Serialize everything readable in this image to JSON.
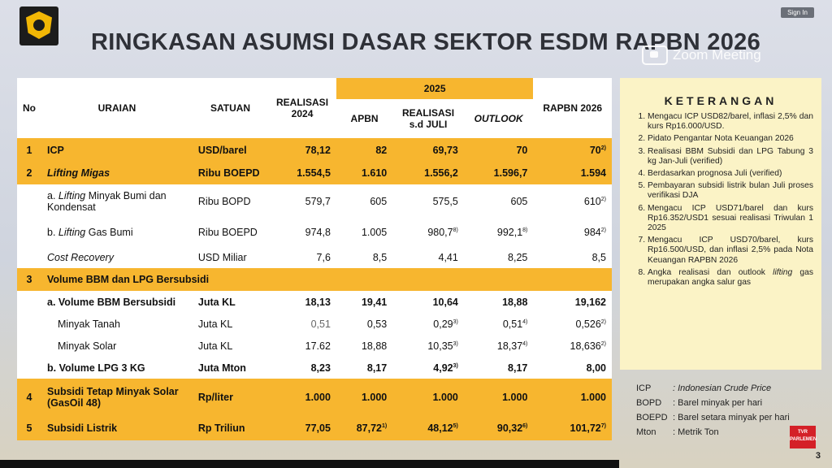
{
  "header": {
    "title": "RINGKASAN ASUMSI DASAR SEKTOR ESDM RAPBN 2026",
    "sign_in": "Sign In",
    "zoom_label": "Zoom Meeting"
  },
  "table": {
    "h_no": "No",
    "h_uraian": "URAIAN",
    "h_satuan": "SATUAN",
    "h_realisasi": "REALISASI 2024",
    "h_2025": "2025",
    "h_apbn": "APBN",
    "h_real_juli": "REALISASI s.d JULI",
    "h_outlook": "OUTLOOK",
    "h_rapbn": "RAPBN 2026",
    "rows": [
      {
        "no": "1",
        "uraian": "ICP",
        "satuan": "USD/barel",
        "r24": "78,12",
        "apbn": "82",
        "real": "69,73",
        "outlook": "70",
        "rapbn": "70",
        "rapbn_sup": "2)"
      },
      {
        "no": "2",
        "uraian": "Lifting Migas",
        "satuan": "Ribu BOEPD",
        "r24": "1.554,5",
        "apbn": "1.610",
        "real": "1.556,2",
        "outlook": "1.596,7",
        "rapbn": "1.594"
      },
      {
        "uraian_pre": "a. ",
        "uraian_it": "Lifting",
        "uraian_post": " Minyak Bumi dan Kondensat",
        "satuan": "Ribu BOPD",
        "r24": "579,7",
        "apbn": "605",
        "real": "575,5",
        "outlook": "605",
        "rapbn": "610",
        "rapbn_sup": "2)"
      },
      {
        "uraian_pre": "b. ",
        "uraian_it": "Lifting",
        "uraian_post": " Gas Bumi",
        "satuan": "Ribu BOEPD",
        "r24": "974,8",
        "apbn": "1.005",
        "real": "980,7",
        "real_sup": "8)",
        "outlook": "992,1",
        "outlook_sup": "8)",
        "rapbn": "984",
        "rapbn_sup": "2)"
      },
      {
        "uraian": "Cost Recovery",
        "satuan": "USD Miliar",
        "r24": "7,6",
        "apbn": "8,5",
        "real": "4,41",
        "outlook": "8,25",
        "rapbn": "8,5"
      },
      {
        "no": "3",
        "uraian": "Volume BBM dan LPG Bersubsidi"
      },
      {
        "uraian": "a. Volume BBM Bersubsidi",
        "satuan": "Juta KL",
        "r24": "18,13",
        "apbn": "19,41",
        "real": "10,64",
        "outlook": "18,88",
        "rapbn": "19,162"
      },
      {
        "uraian": "Minyak Tanah",
        "satuan": "Juta KL",
        "r24": "0,51",
        "apbn": "0,53",
        "real": "0,29",
        "real_sup": "3)",
        "outlook": "0,51",
        "outlook_sup": "4)",
        "rapbn": "0,526",
        "rapbn_sup": "2)"
      },
      {
        "uraian": "Minyak Solar",
        "satuan": "Juta KL",
        "r24": "17.62",
        "apbn": "18,88",
        "real": "10,35",
        "real_sup": "3)",
        "outlook": "18,37",
        "outlook_sup": "4)",
        "rapbn": "18,636",
        "rapbn_sup": "2)"
      },
      {
        "uraian": "b. Volume LPG 3 KG",
        "satuan": "Juta Mton",
        "r24": "8,23",
        "apbn": "8,17",
        "real": "4,92",
        "real_sup": "3)",
        "outlook": "8,17",
        "rapbn": "8,00"
      },
      {
        "no": "4",
        "uraian": "Subsidi Tetap Minyak Solar (GasOil 48)",
        "satuan": "Rp/liter",
        "r24": "1.000",
        "apbn": "1.000",
        "real": "1.000",
        "outlook": "1.000",
        "rapbn": "1.000"
      },
      {
        "no": "5",
        "uraian": "Subsidi Listrik",
        "satuan": "Rp Triliun",
        "r24": "77,05",
        "apbn": "87,72",
        "apbn_sup": "1)",
        "real": "48,12",
        "real_sup": "5)",
        "outlook": "90,32",
        "outlook_sup": "6)",
        "rapbn": "101,72",
        "rapbn_sup": "7)"
      }
    ]
  },
  "keterangan": {
    "title": "KETERANGAN",
    "items": [
      "Mengacu ICP USD82/barel, inflasi 2,5% dan kurs Rp16.000/USD.",
      "Pidato Pengantar Nota Keuangan 2026",
      "Realisasi BBM Subsidi dan LPG Tabung 3 kg Jan-Juli (verified)",
      "Berdasarkan prognosa Juli (verified)",
      "Pembayaran subsidi listrik bulan Juli proses verifikasi DJA",
      "Mengacu ICP USD71/barel dan kurs Rp16.352/USD1 sesuai realisasi Triwulan 1 2025",
      "Mengacu ICP USD70/barel, kurs Rp16.500/USD, dan inflasi 2,5% pada Nota Keuangan RAPBN 2026",
      "Angka realisasi dan outlook lifting gas merupakan angka salur gas"
    ],
    "item8_pre": "Angka realisasi dan outlook ",
    "item8_it": "lifting",
    "item8_post": " gas merupakan angka salur gas"
  },
  "abbreviations": [
    {
      "key": "ICP",
      "value": ": Indonesian Crude Price"
    },
    {
      "key": "BOPD",
      "value": ": Barel minyak per hari"
    },
    {
      "key": "BOEPD",
      "value": ": Barel setara minyak per hari"
    },
    {
      "key": "Mton",
      "value": ": Metrik Ton"
    }
  ],
  "footer": {
    "page": "3",
    "channel": "TVR PARLEMEN"
  }
}
